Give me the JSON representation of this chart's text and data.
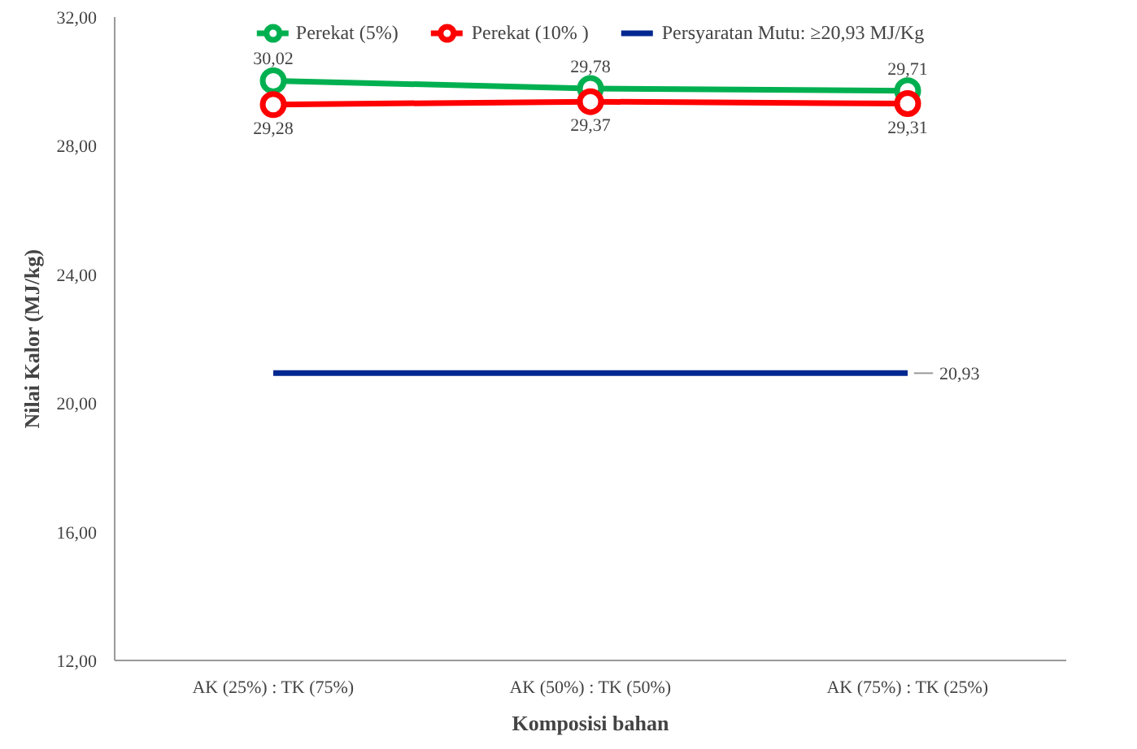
{
  "chart_data": {
    "type": "line",
    "xlabel": "Komposisi bahan",
    "ylabel": "Nilai Kalor (MJ/kg)",
    "categories": [
      "AK (25%) : TK (75%)",
      "AK (50%) : TK (50%)",
      "AK (75%) : TK (25%)"
    ],
    "ylim": [
      12,
      32
    ],
    "yticks": [
      {
        "value": 12,
        "label": "12,00"
      },
      {
        "value": 16,
        "label": "16,00"
      },
      {
        "value": 20,
        "label": "20,00"
      },
      {
        "value": 24,
        "label": "24,00"
      },
      {
        "value": 28,
        "label": "28,00"
      },
      {
        "value": 32,
        "label": "32,00"
      }
    ],
    "grid": false,
    "legend": "top",
    "series": [
      {
        "name": "Perekat (5%)",
        "color": "#00b050",
        "values": [
          30.02,
          29.78,
          29.71
        ],
        "marker": "circle",
        "value_labels": [
          "30,02",
          "29,78",
          "29,71"
        ]
      },
      {
        "name": "Perekat (10% )",
        "color": "#ff0000",
        "values": [
          29.28,
          29.37,
          29.31
        ],
        "marker": "circle",
        "value_labels": [
          "29,28",
          "29,37",
          "29,31"
        ]
      },
      {
        "name": "Persyaratan Mutu: ≥20,93 MJ/Kg",
        "color": "#002890",
        "values": [
          20.93,
          20.93,
          20.93
        ],
        "marker": "none",
        "value_labels": [
          null,
          null,
          "20,93"
        ]
      }
    ]
  }
}
